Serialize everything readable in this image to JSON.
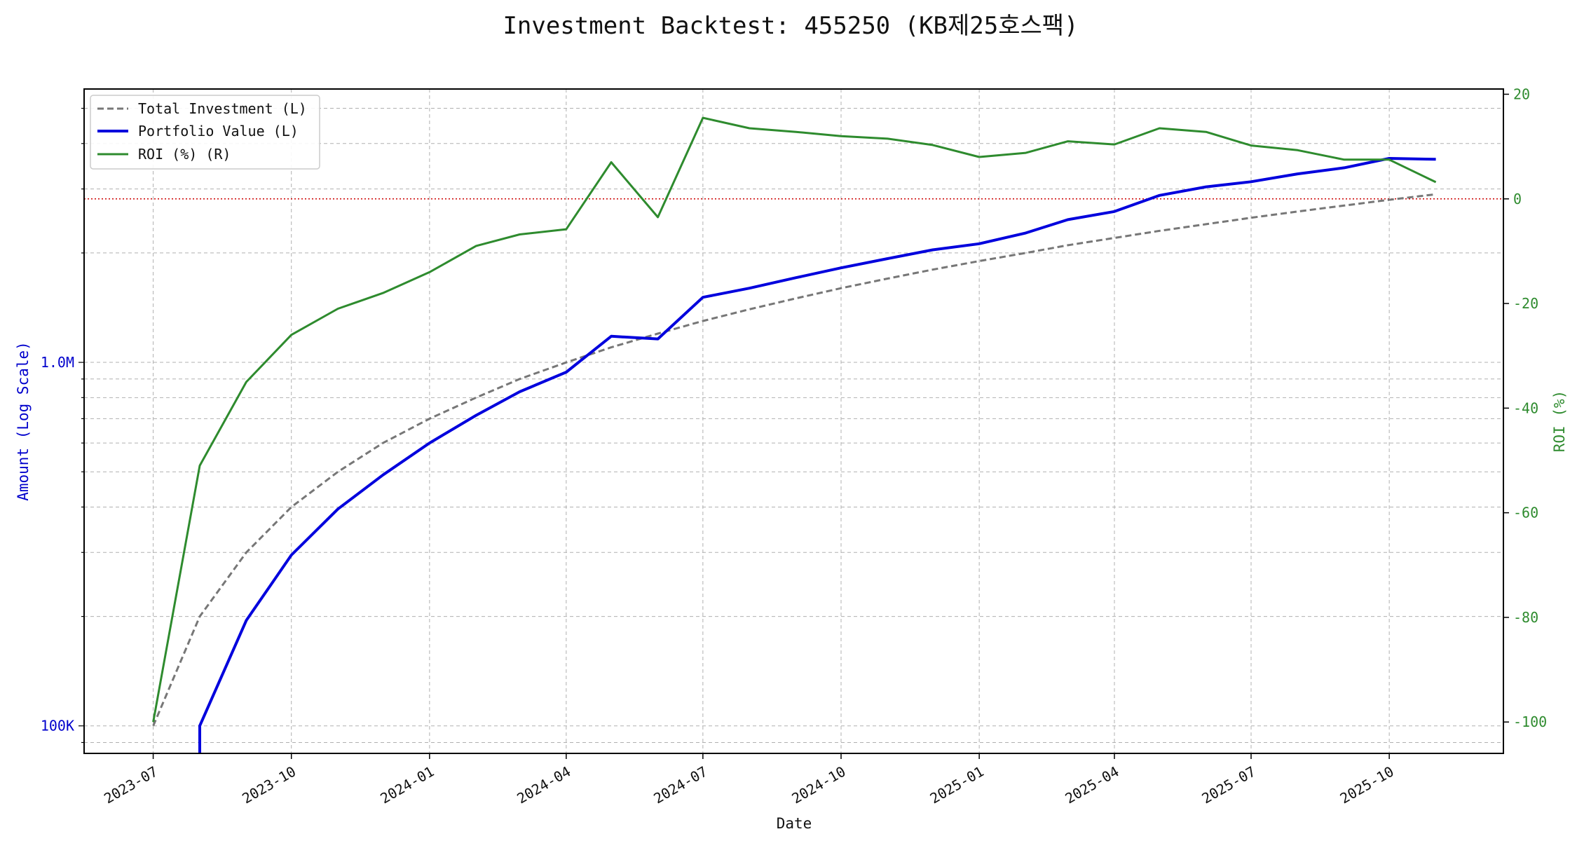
{
  "chart_data": {
    "type": "line",
    "title": "Investment Backtest: 455250 (KB제25호스팩)",
    "xlabel": "Date",
    "ylabel_left": "Amount (Log Scale)",
    "ylabel_right": "ROI (%)",
    "x_ticks": [
      "2023-07",
      "2023-10",
      "2024-01",
      "2024-04",
      "2024-07",
      "2024-10",
      "2025-01",
      "2025-04",
      "2025-07",
      "2025-10"
    ],
    "left_ticks": [
      {
        "value": 100000,
        "label": "100K"
      },
      {
        "value": 1000000,
        "label": "1.0M"
      }
    ],
    "right_ticks": [
      {
        "value": 20,
        "label": "20"
      },
      {
        "value": 0,
        "label": "0"
      },
      {
        "value": -20,
        "label": "-20"
      },
      {
        "value": -40,
        "label": "-40"
      },
      {
        "value": -60,
        "label": "-60"
      },
      {
        "value": -80,
        "label": "-80"
      },
      {
        "value": -100,
        "label": "-100"
      }
    ],
    "left_ylim": [
      84000,
      5650000
    ],
    "right_ylim": [
      -106,
      21
    ],
    "xlim": [
      "2023-05-16",
      "2025-12-16"
    ],
    "log_scale_left": true,
    "grid": true,
    "legend_position": "top-left",
    "reference_line": {
      "axis": "right",
      "value": 0,
      "color": "#cc0000",
      "style": "dotted"
    },
    "x": [
      "2023-07-01",
      "2023-08-01",
      "2023-09-01",
      "2023-10-01",
      "2023-11-01",
      "2023-12-01",
      "2024-01-01",
      "2024-02-01",
      "2024-03-01",
      "2024-04-01",
      "2024-05-01",
      "2024-06-01",
      "2024-07-01",
      "2024-08-01",
      "2024-09-01",
      "2024-10-01",
      "2024-11-01",
      "2024-12-01",
      "2025-01-01",
      "2025-02-01",
      "2025-03-01",
      "2025-04-01",
      "2025-05-01",
      "2025-06-01",
      "2025-07-01",
      "2025-08-01",
      "2025-09-01",
      "2025-10-01",
      "2025-11-01"
    ],
    "series": [
      {
        "name": "Total Investment (L)",
        "axis": "left",
        "color": "#777777",
        "style": "dashed",
        "width": 3,
        "values": [
          100000,
          200000,
          300000,
          400000,
          500000,
          600000,
          700000,
          800000,
          900000,
          1000000,
          1100000,
          1200000,
          1300000,
          1400000,
          1500000,
          1600000,
          1700000,
          1800000,
          1900000,
          2000000,
          2100000,
          2200000,
          2300000,
          2400000,
          2500000,
          2600000,
          2700000,
          2800000,
          2900000
        ]
      },
      {
        "name": "Portfolio Value (L)",
        "axis": "left",
        "color": "#0000dd",
        "style": "solid",
        "width": 4,
        "values": [
          null,
          100000,
          195000,
          295000,
          395000,
          490000,
          600000,
          715000,
          830000,
          940000,
          1180000,
          1160000,
          1510000,
          1600000,
          1710000,
          1820000,
          1930000,
          2040000,
          2120000,
          2270000,
          2470000,
          2600000,
          2880000,
          3040000,
          3140000,
          3300000,
          3430000,
          3640000,
          3620000
        ]
      },
      {
        "name": "ROI (%) (R)",
        "axis": "right",
        "color": "#2e8b2e",
        "style": "solid",
        "width": 3,
        "values": [
          -100,
          -51,
          -35,
          -26,
          -21,
          -18,
          -14,
          -9,
          -6.8,
          -5.8,
          7,
          -3.5,
          15.5,
          13.5,
          12.8,
          12,
          11.5,
          10.3,
          8,
          8.8,
          11,
          10.4,
          13.5,
          12.8,
          10.2,
          9.3,
          7.5,
          7.5,
          3.2
        ]
      }
    ]
  }
}
